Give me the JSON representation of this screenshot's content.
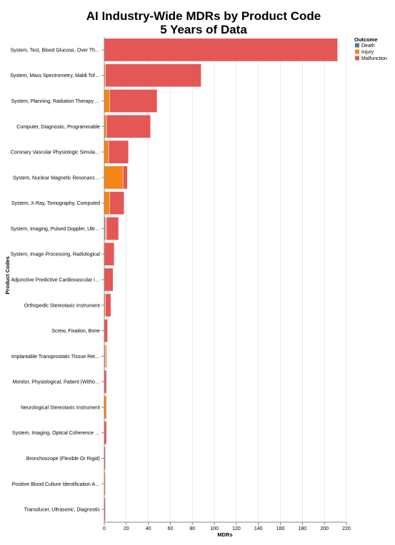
{
  "chart_data": {
    "type": "bar",
    "orientation": "horizontal",
    "stacked": true,
    "title": [
      "AI Industry-Wide MDRs by Product Code",
      "5 Years of Data"
    ],
    "xlabel": "MDRs",
    "ylabel": "Product Codes",
    "xlim": [
      0,
      220
    ],
    "xticks": [
      0,
      20,
      40,
      60,
      80,
      100,
      120,
      140,
      160,
      180,
      200,
      220
    ],
    "grid": true,
    "legend": {
      "title": "Outcome",
      "placement": "top-right"
    },
    "categories": [
      "System, Test, Blood Glucose, Over Th…",
      "System, Mass Spectrometry, Maldi Tof…",
      "System, Planning, Radiation Therapy …",
      "Computer, Diagnostic, Programmable",
      "Coronary Vascular Physiologic Simula…",
      "System, Nuclear Magnetic Resonanc…",
      "System, X-Ray, Tomography, Computed",
      "System, Imaging, Pulsed Doppler, Ultr…",
      "System, Image Processing, Radiological",
      "Adjunctive Predictive Cardiovascular I…",
      "Orthopedic Stereotaxic Instrument",
      "Screw, Fixation, Bone",
      "Implantable Transprostatic Tissue Ret…",
      "Monitor, Physiological, Patient (Witho…",
      "Neurological Stereotaxic Instrument",
      "System, Imaging, Optical Coherence …",
      "Bronchoscope (Flexible Or Rigid)",
      "Positive Blood Culture Identification A…",
      "Transducer, Ultrasonic, Diagnostic"
    ],
    "series": [
      {
        "name": "Death",
        "color": "#4c78a8",
        "values": [
          0,
          0,
          0,
          0,
          0,
          0,
          0,
          1,
          0,
          0,
          0,
          0,
          0,
          0,
          0,
          0,
          0,
          0,
          0
        ]
      },
      {
        "name": "Injury",
        "color": "#f58518",
        "values": [
          0,
          1,
          5,
          2,
          4,
          17,
          5,
          1,
          0,
          0,
          1,
          0,
          1,
          0,
          2,
          0,
          0,
          1,
          0
        ]
      },
      {
        "name": "Malfunction",
        "color": "#e45756",
        "values": [
          212,
          87,
          43,
          40,
          18,
          4,
          13,
          11,
          9,
          8,
          5,
          3,
          1,
          2,
          0,
          2,
          1,
          0,
          1
        ]
      }
    ]
  }
}
